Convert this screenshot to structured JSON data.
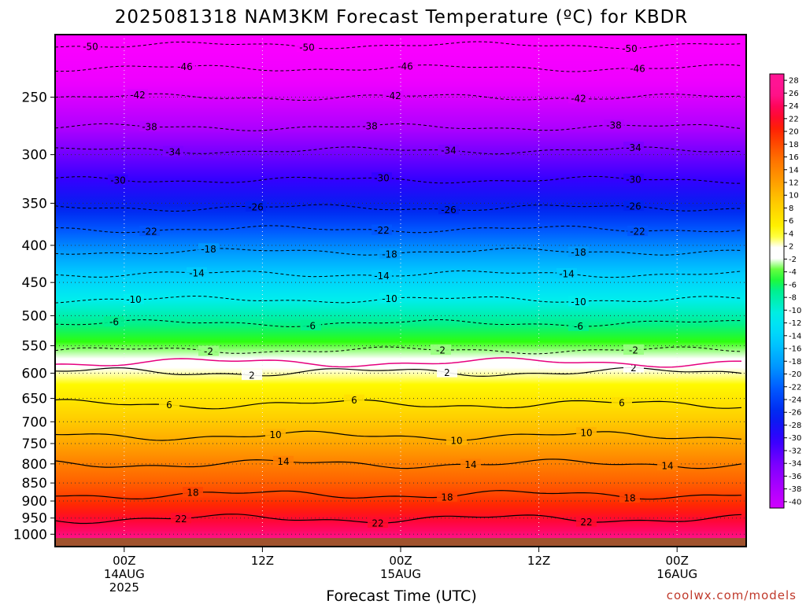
{
  "chart_data": {
    "type": "heatmap",
    "title": "2025081318 NAM3KM Forecast Temperature (ºC) for KBDR",
    "xlabel": "Forecast Time (UTC)",
    "ylabel": "",
    "credit": "coolwx.com/models",
    "y_axis": {
      "scale": "log",
      "reversed": true,
      "ylim": [
        1040,
        205
      ],
      "ticks": [
        250,
        300,
        350,
        400,
        450,
        500,
        550,
        600,
        650,
        700,
        750,
        800,
        850,
        900,
        950,
        1000
      ],
      "tick_labels": [
        "250",
        "300",
        "350",
        "400",
        "450",
        "500",
        "550",
        "600",
        "650",
        "700",
        "750",
        "800",
        "850",
        "900",
        "950",
        "1000"
      ]
    },
    "x_axis": {
      "units": "forecast hour",
      "xlim": [
        -6,
        54
      ],
      "ticks": [
        {
          "hour": 0,
          "lines": [
            "00Z",
            "14AUG",
            "2025"
          ]
        },
        {
          "hour": 12,
          "lines": [
            "12Z"
          ]
        },
        {
          "hour": 24,
          "lines": [
            "00Z",
            "15AUG"
          ]
        },
        {
          "hour": 36,
          "lines": [
            "12Z"
          ]
        },
        {
          "hour": 48,
          "lines": [
            "00Z",
            "16AUG"
          ]
        }
      ]
    },
    "grid": true,
    "colorbar": {
      "placement": "right",
      "labels": [
        28,
        26,
        24,
        22,
        20,
        18,
        16,
        14,
        12,
        10,
        8,
        6,
        4,
        2,
        -2,
        -4,
        -6,
        -8,
        -10,
        -12,
        -14,
        -16,
        -18,
        -20,
        -22,
        -24,
        -26,
        -28,
        -30,
        -32,
        -34,
        -36,
        -38,
        -40
      ]
    },
    "contours": [
      {
        "level": -50,
        "p": 212
      },
      {
        "level": -46,
        "p": 228
      },
      {
        "level": -42,
        "p": 250
      },
      {
        "level": -38,
        "p": 275
      },
      {
        "level": -34,
        "p": 296
      },
      {
        "level": -30,
        "p": 325
      },
      {
        "level": -26,
        "p": 355
      },
      {
        "level": -22,
        "p": 380
      },
      {
        "level": -18,
        "p": 408
      },
      {
        "level": -14,
        "p": 438
      },
      {
        "level": -10,
        "p": 475
      },
      {
        "level": -6,
        "p": 512
      },
      {
        "level": -2,
        "p": 558
      },
      {
        "level": 2,
        "p": 598
      },
      {
        "level": 6,
        "p": 662
      },
      {
        "level": 10,
        "p": 732
      },
      {
        "level": 14,
        "p": 800
      },
      {
        "level": 18,
        "p": 882
      },
      {
        "level": 22,
        "p": 952
      }
    ],
    "freezing_level": {
      "level": 0,
      "p": 580
    },
    "surface_p": 1012,
    "temperature_range": [
      -52,
      26
    ]
  }
}
